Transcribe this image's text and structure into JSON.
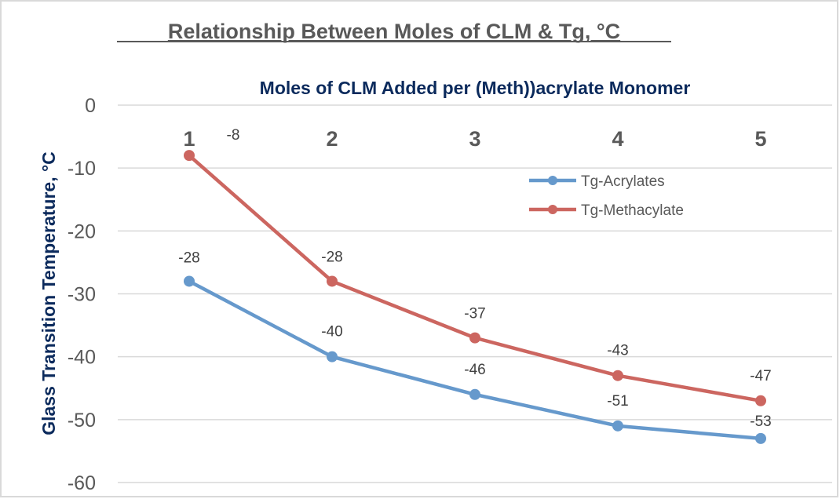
{
  "chart_data": {
    "type": "line",
    "title": "Relationship Between Moles of CLM & Tg, °C",
    "xlabel": "Moles of CLM Added per (Meth))acrylate Monomer",
    "ylabel": "Glass Transition Temperature, °C",
    "categories": [
      "1",
      "2",
      "3",
      "4",
      "5"
    ],
    "x_axis_position": "top",
    "ylim": [
      -60,
      0
    ],
    "yticks": [
      "0",
      "-10",
      "-20",
      "-30",
      "-40",
      "-50",
      "-60"
    ],
    "ytick_values": [
      0,
      -10,
      -20,
      -30,
      -40,
      -50,
      -60
    ],
    "grid": true,
    "legend_position": "right",
    "series": [
      {
        "name": "Tg-Acrylates",
        "values": [
          -28,
          -40,
          -46,
          -51,
          -53
        ],
        "labels": [
          "-28",
          "-40",
          "-46",
          "-51",
          "-53"
        ],
        "color": "#6699cc"
      },
      {
        "name": "Tg-Methacylate",
        "values": [
          -8,
          -28,
          -37,
          -43,
          -47
        ],
        "labels": [
          "-8",
          "-28",
          "-37",
          "-43",
          "-47"
        ],
        "color": "#cc6660"
      }
    ],
    "colors": {
      "title": "#595959",
      "axis_title": "#0b2a5c",
      "tick": "#595959",
      "grid": "#d9d9d9"
    }
  }
}
